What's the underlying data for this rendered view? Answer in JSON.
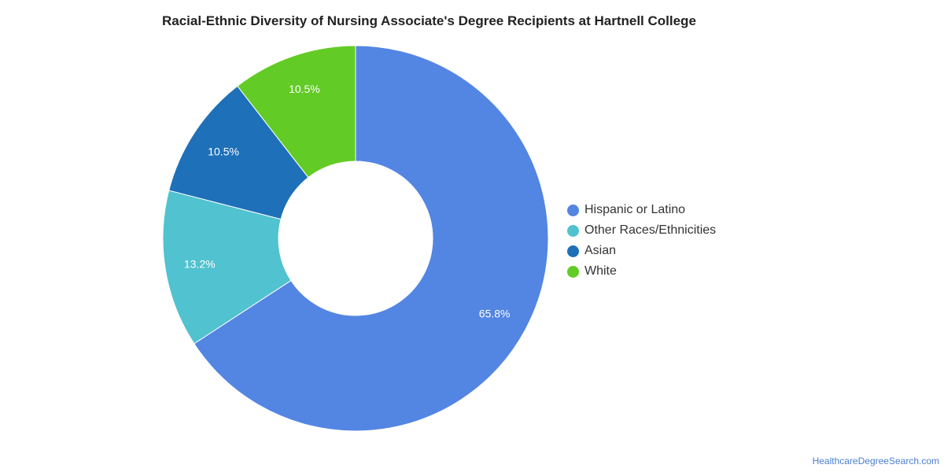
{
  "chart_data": {
    "type": "pie",
    "title": "Racial-Ethnic Diversity of Nursing Associate's Degree Recipients at Hartnell College",
    "donut": true,
    "legend_position": "right",
    "slices": [
      {
        "label": "Hispanic or Latino",
        "value": 65.8,
        "display": "65.8%",
        "color": "#5385e3"
      },
      {
        "label": "Other Races/Ethnicities",
        "value": 13.2,
        "display": "13.2%",
        "color": "#51c2cf"
      },
      {
        "label": "Asian",
        "value": 10.5,
        "display": "10.5%",
        "color": "#1e70b8"
      },
      {
        "label": "White",
        "value": 10.5,
        "display": "10.5%",
        "color": "#63cb25"
      }
    ]
  },
  "legend": {
    "items": [
      {
        "label": "Hispanic or Latino",
        "color": "#5385e3"
      },
      {
        "label": "Other Races/Ethnicities",
        "color": "#51c2cf"
      },
      {
        "label": "Asian",
        "color": "#1e70b8"
      },
      {
        "label": "White",
        "color": "#63cb25"
      }
    ]
  },
  "footer": {
    "source_link": "HealthcareDegreeSearch.com"
  }
}
